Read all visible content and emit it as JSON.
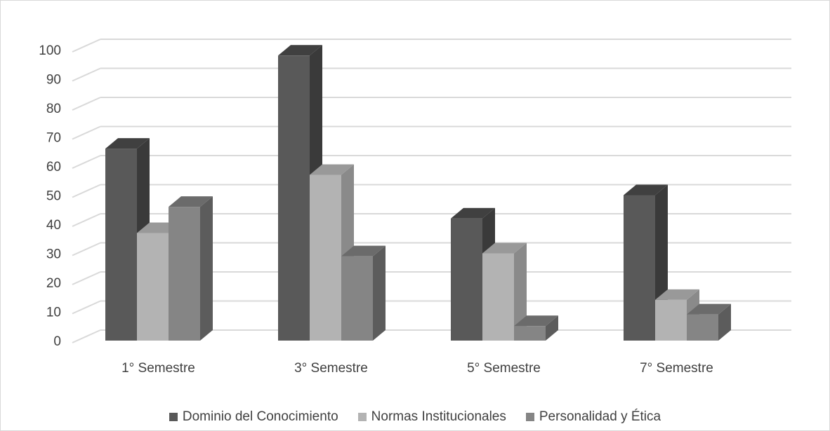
{
  "chart_data": {
    "type": "bar",
    "categories": [
      "1° Semestre",
      "3° Semestre",
      "5° Semestre",
      "7° Semestre"
    ],
    "series": [
      {
        "name": "Dominio del Conocimiento",
        "values": [
          66,
          98,
          42,
          50
        ],
        "color": "#595959",
        "side_color": "#3a3a3a",
        "top_color": "#404040"
      },
      {
        "name": "Normas Institucionales",
        "values": [
          37,
          57,
          30,
          14
        ],
        "color": "#b3b3b3",
        "side_color": "#8a8a8a",
        "top_color": "#999999"
      },
      {
        "name": "Personalidad y Ética",
        "values": [
          46,
          29,
          5,
          9
        ],
        "color": "#858585",
        "side_color": "#5c5c5c",
        "top_color": "#6b6b6b"
      }
    ],
    "ylim": [
      0,
      100
    ],
    "yticks": [
      "0",
      "10",
      "20",
      "30",
      "40",
      "50",
      "60",
      "70",
      "80",
      "90",
      "100"
    ],
    "grid": true,
    "legend_position": "bottom",
    "style": "3d-clustered-column",
    "title": "",
    "xlabel": "",
    "ylabel": ""
  }
}
